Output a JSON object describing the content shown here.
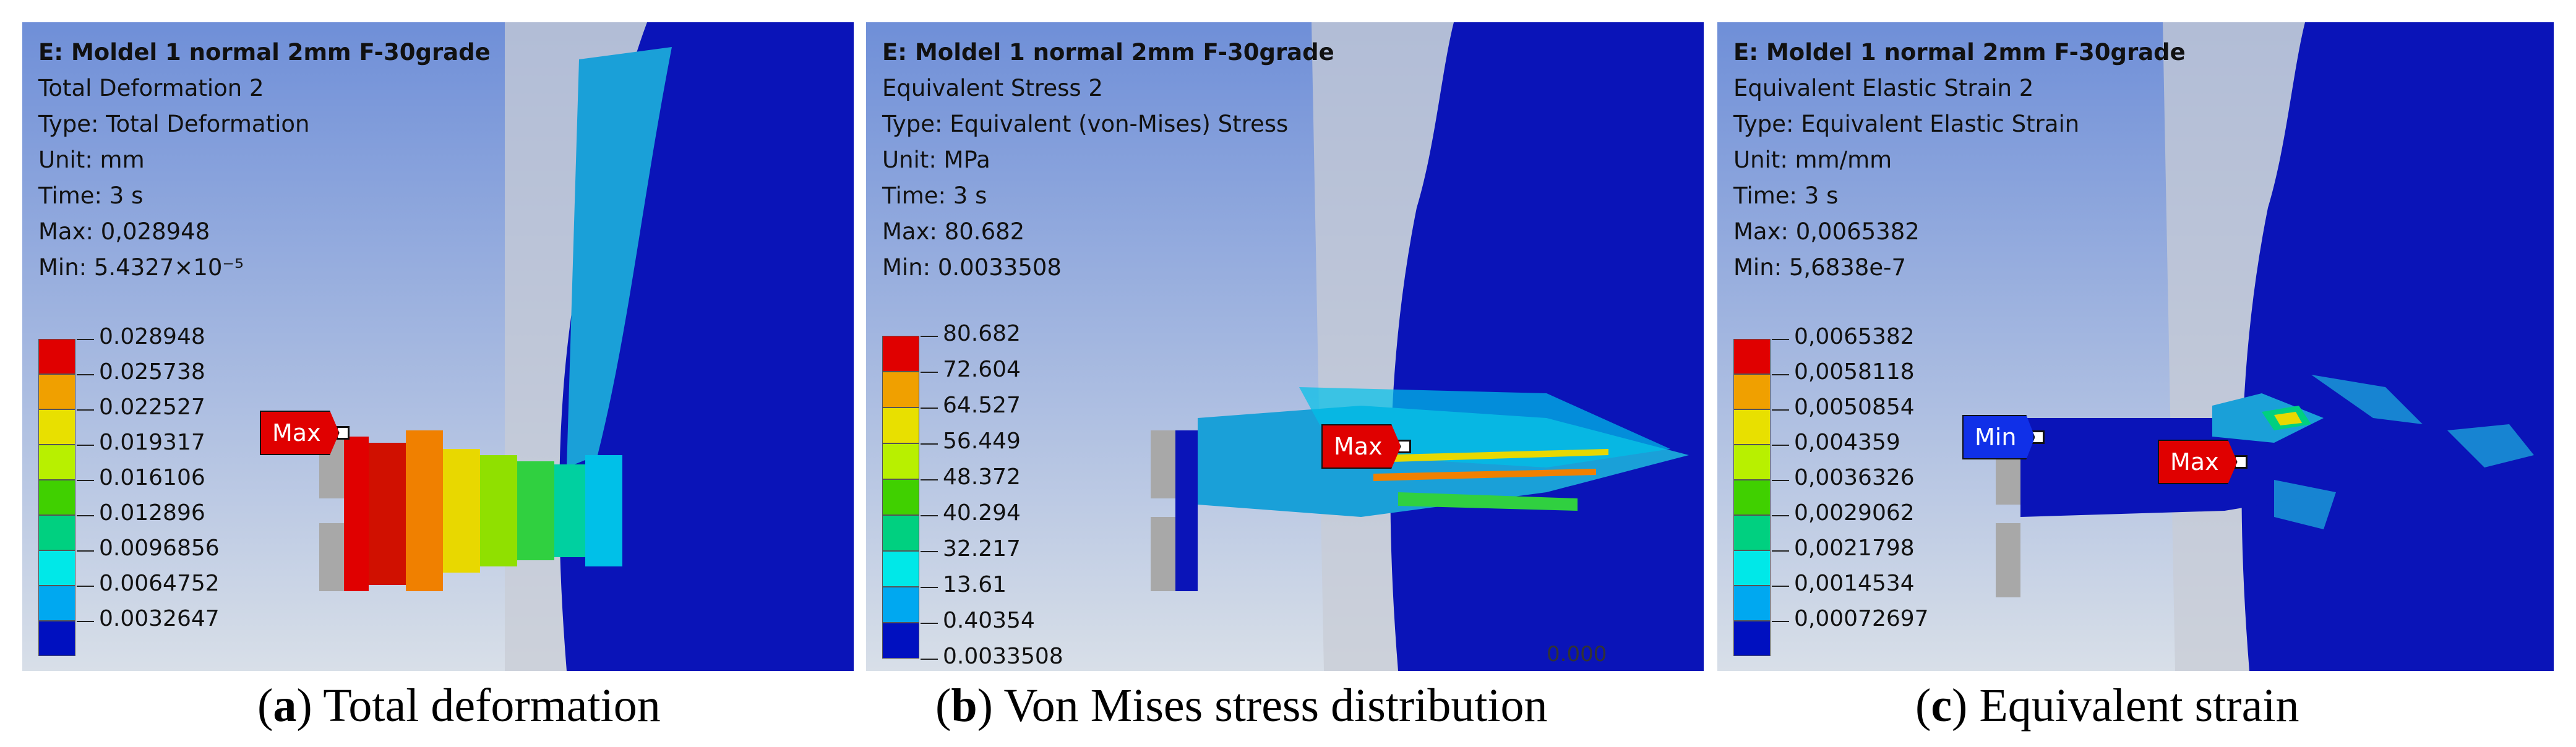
{
  "panels": [
    {
      "title": "E: Moldel 1 normal 2mm F-30grade",
      "result_name": "Total Deformation 2",
      "type_line": "Type: Total Deformation",
      "unit_line": "Unit: mm",
      "time_line": "Time: 3 s",
      "max_line": "Max: 0,028948",
      "min_line": "Min: 5.4327×10⁻⁵",
      "legend": [
        "0.028948",
        "0.025738",
        "0.022527",
        "0.019317",
        "0.016106",
        "0.012896",
        "0.0096856",
        "0.0064752",
        "0.0032647"
      ],
      "probes": [
        "Max"
      ],
      "caption_letter": "a",
      "caption_text": " Total deformation"
    },
    {
      "title": "E: Moldel 1 normal 2mm F-30grade",
      "result_name": "Equivalent Stress 2",
      "type_line": "Type: Equivalent (von-Mises) Stress",
      "unit_line": "Unit: MPa",
      "time_line": "Time: 3 s",
      "max_line": "Max: 80.682",
      "min_line": "Min: 0.0033508",
      "legend": [
        "80.682",
        "72.604",
        "64.527",
        "56.449",
        "48.372",
        "40.294",
        "32.217",
        "13.61",
        "0.40354",
        "0.0033508"
      ],
      "probes": [
        "Max"
      ],
      "scale_label": "0.000",
      "caption_letter": "b",
      "caption_text": " Von Mises stress distribution"
    },
    {
      "title": "E: Moldel 1 normal 2mm F-30grade",
      "result_name": "Equivalent Elastic Strain 2",
      "type_line": "Type: Equivalent Elastic Strain",
      "unit_line": "Unit: mm/mm",
      "time_line": "Time: 3 s",
      "max_line": "Max: 0,0065382",
      "min_line": "Min: 5,6838e-7",
      "legend": [
        "0,0065382",
        "0,0058118",
        "0,0050854",
        "0,004359",
        "0,0036326",
        "0,0029062",
        "0,0021798",
        "0,0014534",
        "0,00072697"
      ],
      "probes": [
        "Min",
        "Max"
      ],
      "caption_letter": "c",
      "caption_text": " Equivalent strain"
    }
  ],
  "colors": {
    "legend_scale": [
      "#e00000",
      "#f0a000",
      "#e8e000",
      "#b8f000",
      "#40d000",
      "#00d080",
      "#00e8e8",
      "#00a8f0",
      "#0010c0"
    ],
    "background_top": "#6f8fd8",
    "background_bottom": "#d8dfe8",
    "part_blue": "#0a14b8",
    "probe_max": "#e00000",
    "probe_min": "#1030e8"
  }
}
